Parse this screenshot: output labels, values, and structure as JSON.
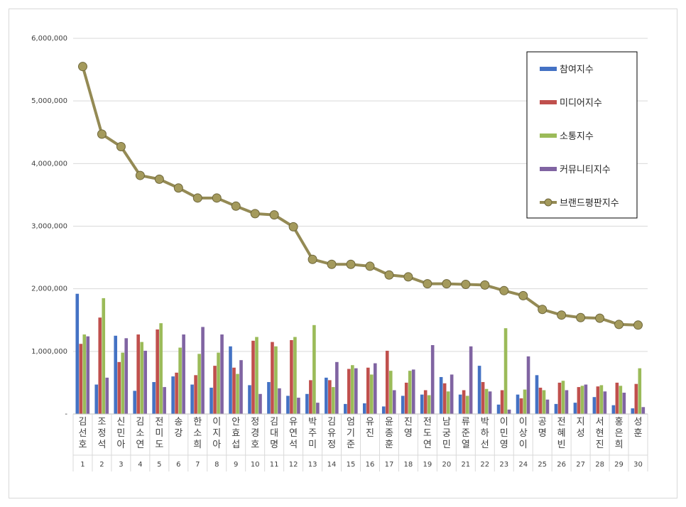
{
  "chart_data": {
    "type": "bar",
    "title": "",
    "xlabel": "",
    "ylabel": "",
    "ylim": [
      0,
      6000000
    ],
    "yticks": [
      0,
      1000000,
      2000000,
      3000000,
      4000000,
      5000000,
      6000000
    ],
    "ytick_labels": [
      "-",
      "1,000,000",
      "2,000,000",
      "3,000,000",
      "4,000,000",
      "5,000,000",
      "6,000,000"
    ],
    "grid": true,
    "legend_position": "top-right",
    "categories": [
      "김선호",
      "조정석",
      "신민아",
      "김소연",
      "전미도",
      "송강",
      "한소희",
      "이지아",
      "안효섭",
      "정경호",
      "김대명",
      "유연석",
      "박주미",
      "김유정",
      "엄기준",
      "유진",
      "윤종훈",
      "진영",
      "전도연",
      "남궁민",
      "류준열",
      "박하선",
      "이민영",
      "이상이",
      "공명",
      "전혜빈",
      "지성",
      "서현진",
      "홍은희",
      "성훈"
    ],
    "ranks": [
      "1",
      "2",
      "3",
      "4",
      "5",
      "6",
      "7",
      "8",
      "9",
      "10",
      "11",
      "12",
      "13",
      "14",
      "15",
      "16",
      "17",
      "18",
      "19",
      "20",
      "21",
      "22",
      "23",
      "24",
      "25",
      "26",
      "27",
      "28",
      "29",
      "30"
    ],
    "series": [
      {
        "name": "참여지수",
        "type": "bar",
        "color": "#4472c4",
        "values": [
          1920000,
          470000,
          1250000,
          370000,
          510000,
          600000,
          470000,
          420000,
          1080000,
          460000,
          510000,
          290000,
          320000,
          580000,
          160000,
          170000,
          120000,
          290000,
          310000,
          590000,
          310000,
          770000,
          150000,
          310000,
          620000,
          160000,
          180000,
          270000,
          140000,
          90000
        ]
      },
      {
        "name": "미디어지수",
        "type": "bar",
        "color": "#c0504d",
        "values": [
          1120000,
          1540000,
          830000,
          1270000,
          1350000,
          660000,
          620000,
          770000,
          740000,
          1170000,
          1150000,
          1180000,
          540000,
          540000,
          720000,
          740000,
          1010000,
          500000,
          380000,
          490000,
          380000,
          510000,
          380000,
          250000,
          420000,
          500000,
          430000,
          440000,
          500000,
          480000
        ]
      },
      {
        "name": "소통지수",
        "type": "bar",
        "color": "#9bbb59",
        "values": [
          1270000,
          1850000,
          980000,
          1150000,
          1450000,
          1060000,
          960000,
          980000,
          640000,
          1230000,
          1080000,
          1230000,
          1420000,
          430000,
          780000,
          630000,
          690000,
          690000,
          300000,
          360000,
          290000,
          400000,
          1370000,
          390000,
          380000,
          530000,
          450000,
          460000,
          450000,
          730000
        ]
      },
      {
        "name": "커뮤니티지수",
        "type": "bar",
        "color": "#8064a2",
        "values": [
          1240000,
          580000,
          1210000,
          1010000,
          430000,
          1270000,
          1390000,
          1270000,
          860000,
          320000,
          410000,
          260000,
          180000,
          830000,
          730000,
          810000,
          380000,
          710000,
          1100000,
          630000,
          1080000,
          360000,
          70000,
          920000,
          230000,
          380000,
          470000,
          360000,
          340000,
          110000
        ]
      },
      {
        "name": "브랜드평판지수",
        "type": "line",
        "color": "#948a54",
        "values": [
          5550000,
          4470000,
          4270000,
          3810000,
          3750000,
          3610000,
          3450000,
          3450000,
          3320000,
          3200000,
          3180000,
          2990000,
          2470000,
          2390000,
          2390000,
          2360000,
          2220000,
          2190000,
          2080000,
          2080000,
          2070000,
          2060000,
          1970000,
          1890000,
          1670000,
          1580000,
          1540000,
          1530000,
          1430000,
          1420000
        ]
      }
    ]
  }
}
